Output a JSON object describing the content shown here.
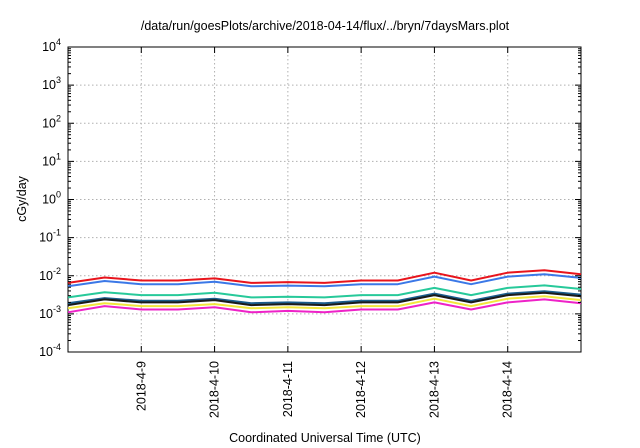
{
  "chart_data": {
    "type": "line",
    "title": "/data/run/goesPlots/archive/2018-04-14/flux/../bryn/7daysMars.plot",
    "xlabel": "Coordinated Universal Time (UTC)",
    "ylabel": "cGy/day",
    "yscale": "log",
    "ylim": [
      0.0001,
      10000
    ],
    "y_ticks": [
      {
        "base": "10",
        "exp": "-4",
        "value": 0.0001
      },
      {
        "base": "10",
        "exp": "-3",
        "value": 0.001
      },
      {
        "base": "10",
        "exp": "-2",
        "value": 0.01
      },
      {
        "base": "10",
        "exp": "-1",
        "value": 0.1
      },
      {
        "base": "10",
        "exp": "0",
        "value": 1
      },
      {
        "base": "10",
        "exp": "1",
        "value": 10
      },
      {
        "base": "10",
        "exp": "2",
        "value": 100
      },
      {
        "base": "10",
        "exp": "3",
        "value": 1000
      },
      {
        "base": "10",
        "exp": "4",
        "value": 10000
      }
    ],
    "xlim": [
      "2018-04-08 00:00",
      "2018-04-15 00:00"
    ],
    "x_ticks": [
      {
        "label": "2018-4-9",
        "time": "2018-04-09 00:00"
      },
      {
        "label": "2018-4-10",
        "time": "2018-04-10 00:00"
      },
      {
        "label": "2018-4-11",
        "time": "2018-04-11 00:00"
      },
      {
        "label": "2018-4-12",
        "time": "2018-04-12 00:00"
      },
      {
        "label": "2018-4-13",
        "time": "2018-04-13 00:00"
      },
      {
        "label": "2018-4-14",
        "time": "2018-04-14 00:00"
      }
    ],
    "grid": true,
    "legend": "none",
    "x": [
      "2018-04-08 00:00",
      "2018-04-08 12:00",
      "2018-04-09 00:00",
      "2018-04-09 12:00",
      "2018-04-10 00:00",
      "2018-04-10 12:00",
      "2018-04-11 00:00",
      "2018-04-11 12:00",
      "2018-04-12 00:00",
      "2018-04-12 12:00",
      "2018-04-13 00:00",
      "2018-04-13 12:00",
      "2018-04-14 00:00",
      "2018-04-14 12:00",
      "2018-04-15 00:00"
    ],
    "series": [
      {
        "color": "#e8141c",
        "values": [
          0.0065,
          0.009,
          0.0075,
          0.0075,
          0.0085,
          0.0065,
          0.0068,
          0.0065,
          0.0075,
          0.0075,
          0.012,
          0.0075,
          0.012,
          0.014,
          0.011
        ]
      },
      {
        "color": "#3b78e7",
        "values": [
          0.0053,
          0.0073,
          0.006,
          0.006,
          0.007,
          0.0053,
          0.0055,
          0.0053,
          0.006,
          0.006,
          0.0095,
          0.006,
          0.0095,
          0.011,
          0.0088
        ]
      },
      {
        "color": "#27c99a",
        "values": [
          0.0027,
          0.0037,
          0.0031,
          0.0031,
          0.0036,
          0.0027,
          0.0028,
          0.0027,
          0.0031,
          0.0031,
          0.0048,
          0.0031,
          0.0048,
          0.0056,
          0.0045
        ]
      },
      {
        "color": "#1a5c8c",
        "values": [
          0.0019,
          0.0026,
          0.0022,
          0.0022,
          0.0025,
          0.0019,
          0.002,
          0.0019,
          0.0022,
          0.0022,
          0.0034,
          0.0022,
          0.0034,
          0.0039,
          0.0032
        ]
      },
      {
        "color": "#1a1a1a",
        "values": [
          0.0017,
          0.0024,
          0.002,
          0.002,
          0.0023,
          0.0017,
          0.0018,
          0.0017,
          0.002,
          0.002,
          0.0031,
          0.002,
          0.0031,
          0.0036,
          0.0029
        ]
      },
      {
        "color": "#f2e63c",
        "values": [
          0.0014,
          0.0019,
          0.0016,
          0.0016,
          0.0018,
          0.0014,
          0.0015,
          0.0014,
          0.0016,
          0.0016,
          0.0025,
          0.0016,
          0.0025,
          0.0029,
          0.0023
        ]
      },
      {
        "color": "#ee22c8",
        "values": [
          0.0011,
          0.0016,
          0.0013,
          0.0013,
          0.0015,
          0.0011,
          0.0012,
          0.0011,
          0.0013,
          0.0013,
          0.002,
          0.0013,
          0.002,
          0.0024,
          0.0019
        ]
      }
    ]
  }
}
